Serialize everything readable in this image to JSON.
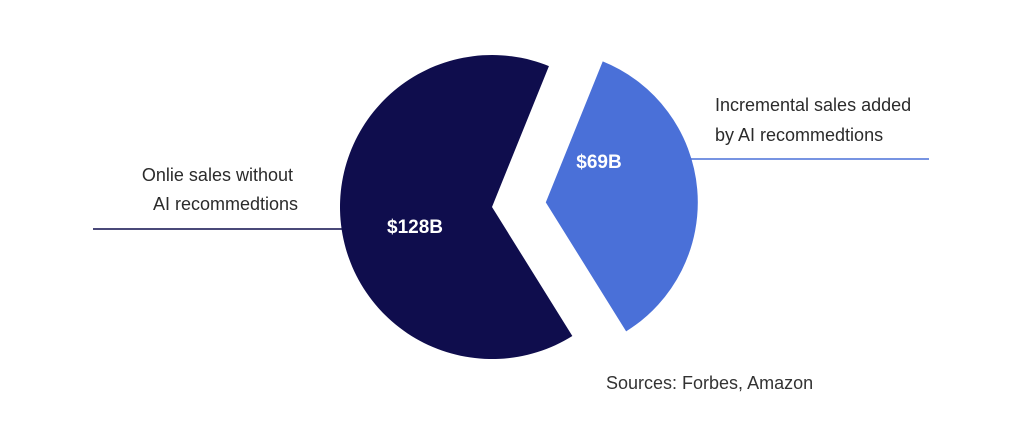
{
  "chart_data": {
    "type": "pie",
    "title": "",
    "unit": "$B",
    "exploded": "Incremental sales added by AI recommedtions",
    "slices": [
      {
        "name": "Onlie sales without AI recommedtions",
        "label_lines": [
          "Onlie sales without",
          "AI recommedtions"
        ],
        "value": 128,
        "value_label": "$128B",
        "color": "#0f0d4d"
      },
      {
        "name": "Incremental sales added by AI recommedtions",
        "label_lines": [
          "Incremental sales added",
          "by AI recommedtions"
        ],
        "value": 69,
        "value_label": "$69B",
        "color": "#4a70d8"
      }
    ]
  },
  "footer": {
    "source": "Sources: Forbes, Amazon"
  }
}
